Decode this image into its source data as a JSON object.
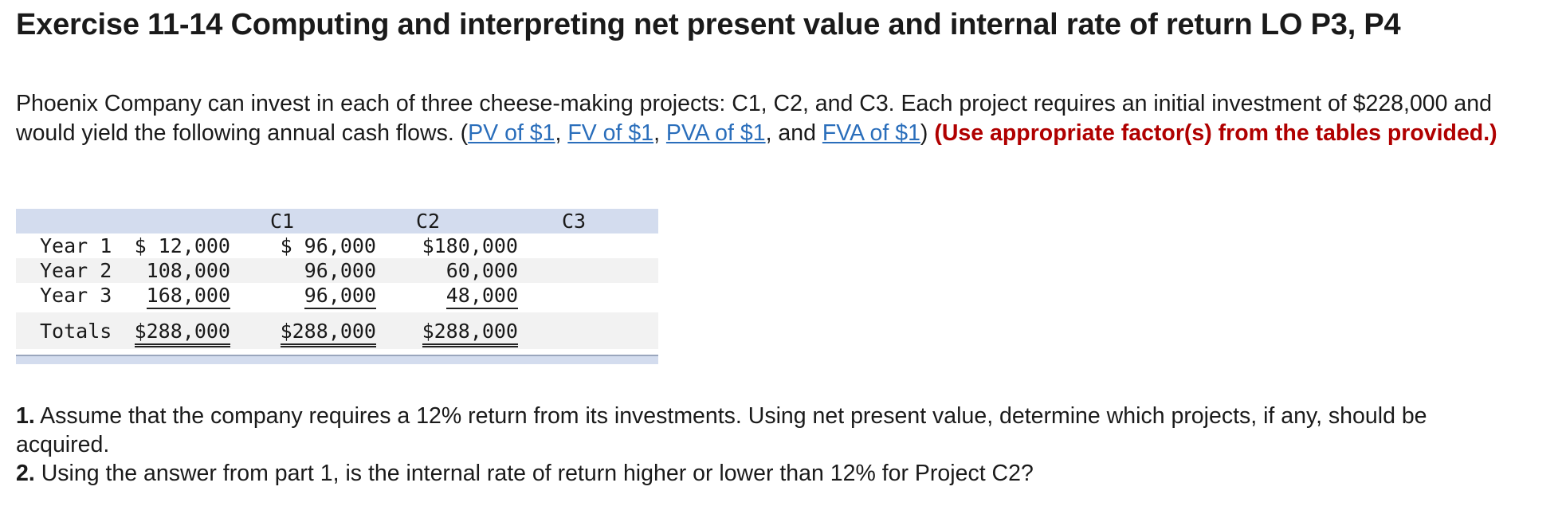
{
  "title": "Exercise 11-14 Computing and interpreting net present value and internal rate of return LO P3, P4",
  "intro": {
    "text_before_links": "Phoenix Company can invest in each of three cheese-making projects: C1, C2, and C3. Each project requires an initial investment of $228,000 and would yield the following annual cash flows. (",
    "link_pv": "PV of $1",
    "sep1": ", ",
    "link_fv": "FV of $1",
    "sep2": ", ",
    "link_pva": "PVA of $1",
    "sep3": ", and ",
    "link_fva": "FVA of $1",
    "close": ") ",
    "instruction": "(Use appropriate factor(s) from the tables provided.)"
  },
  "table": {
    "headers": [
      "C1",
      "C2",
      "C3"
    ],
    "rows": [
      {
        "label": "Year 1",
        "c1": "$ 12,000",
        "c2": "$ 96,000",
        "c3": "$180,000"
      },
      {
        "label": "Year 2",
        "c1": "108,000",
        "c2": "96,000",
        "c3": "60,000"
      },
      {
        "label": "Year 3",
        "c1": "168,000",
        "c2": "96,000",
        "c3": "48,000"
      }
    ],
    "totals": {
      "label": "Totals",
      "c1": "$288,000",
      "c2": "$288,000",
      "c3": "$288,000"
    }
  },
  "questions": [
    {
      "num": "1.",
      "text": " Assume that the company requires a 12% return from its investments. Using net present value, determine which projects, if any, should be acquired."
    },
    {
      "num": "2.",
      "text": " Using the answer from part 1, is the internal rate of return higher or lower than 12% for Project C2?"
    }
  ],
  "colors": {
    "link": "#2a6ebb",
    "instruction": "#b00000",
    "header_bg": "#d3dcee"
  }
}
